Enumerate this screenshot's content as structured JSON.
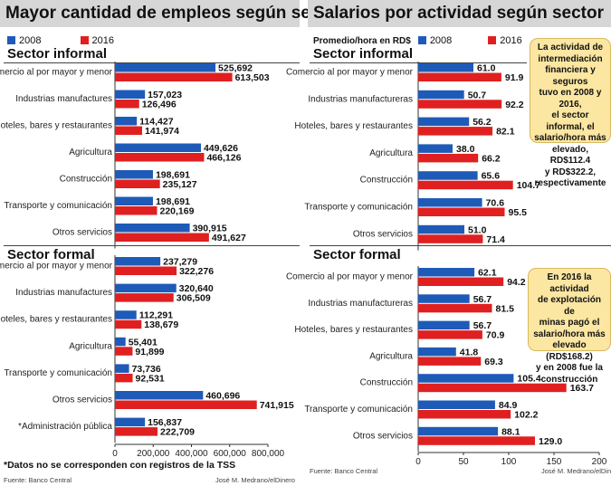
{
  "left": {
    "title": "Mayor cantidad de empleos según sector",
    "legend": [
      "2008",
      "2016"
    ],
    "informal_title": "Sector informal",
    "formal_title": "Sector formal",
    "note": "*Datos no se corresponden con registros de la TSS",
    "source": "Fuente: Banco Central",
    "credit": "José M. Medrano/elDinero",
    "ticks": [
      "0",
      "200,000",
      "400,000",
      "600,000",
      "800,000"
    ]
  },
  "right": {
    "title": "Salarios por actividad según sector",
    "legend_prefix": "Promedio/hora en RD$",
    "legend": [
      "2008",
      "2016"
    ],
    "informal_title": "Sector informal",
    "formal_title": "Sector formal",
    "source": "Fuente: Banco Central",
    "credit": "José M. Medrano/elDinero",
    "ticks": [
      "0",
      "50",
      "100",
      "150",
      "200"
    ],
    "callout_informal": [
      "La actividad de",
      "intermediación",
      "financiera y seguros",
      "tuvo en 2008 y 2016,",
      "el sector informal, el",
      "salario/hora más",
      "elevado, RD$112.4",
      "y RD$322.2,",
      "respectivamente"
    ],
    "callout_formal": [
      "En 2016 la actividad",
      "de explotación de",
      "minas pagó el",
      "salario/hora más",
      "elevado (RD$168.2)",
      "y en 2008 fue la",
      "construcción"
    ]
  },
  "colors": {
    "s2008": "#1e5bb8",
    "s2016": "#e02020"
  },
  "chart_data": [
    {
      "type": "bar",
      "title": "Mayor cantidad de empleos según sector — Sector informal",
      "categories": [
        "Comercio al por mayor y menor",
        "Industrias manufactures",
        "Hoteles, bares y restaurantes",
        "Agricultura",
        "Construcción",
        "Transporte y comunicación",
        "Otros servicios"
      ],
      "series": [
        {
          "name": "2008",
          "values": [
            525692,
            157023,
            114427,
            449626,
            198691,
            198691,
            390915
          ],
          "labels": [
            "525,692",
            "157,023",
            "114,427",
            "449,626",
            "198,691",
            "198,691",
            "390,915"
          ]
        },
        {
          "name": "2016",
          "values": [
            613503,
            126496,
            141974,
            466126,
            235127,
            220169,
            491627
          ],
          "labels": [
            "613,503",
            "126,496",
            "141,974",
            "466,126",
            "235,127",
            "220,169",
            "491,627"
          ]
        }
      ],
      "xlim": [
        0,
        800000
      ]
    },
    {
      "type": "bar",
      "title": "Mayor cantidad de empleos según sector — Sector formal",
      "categories": [
        "Comercio al por mayor y menor",
        "Industrias manufactures",
        "Hoteles, bares y restaurantes",
        "Agricultura",
        "Transporte y comunicación",
        "Otros servicios",
        "*Administración pública"
      ],
      "series": [
        {
          "name": "2008",
          "values": [
            237279,
            320640,
            112291,
            55401,
            73736,
            460696,
            156837
          ],
          "labels": [
            "237,279",
            "320,640",
            "112,291",
            "55,401",
            "73,736",
            "460,696",
            "156,837"
          ]
        },
        {
          "name": "2016",
          "values": [
            322276,
            306509,
            138679,
            91899,
            92531,
            741915,
            222709
          ],
          "labels": [
            "322,276",
            "306,509",
            "138,679",
            "91,899",
            "92,531",
            "741,915",
            "222,709"
          ]
        }
      ],
      "xlim": [
        0,
        800000
      ]
    },
    {
      "type": "bar",
      "title": "Salarios por actividad según sector — Sector informal",
      "categories": [
        "Comercio al por mayor y menor",
        "Industrias manufactureras",
        "Hoteles, bares y restaurantes",
        "Agricultura",
        "Construcción",
        "Transporte y comunicación",
        "Otros servicios"
      ],
      "series": [
        {
          "name": "2008",
          "values": [
            61.0,
            50.7,
            56.2,
            38.0,
            65.6,
            70.6,
            51.0
          ],
          "labels": [
            "61.0",
            "50.7",
            "56.2",
            "38.0",
            "65.6",
            "70.6",
            "51.0"
          ]
        },
        {
          "name": "2016",
          "values": [
            91.9,
            92.2,
            82.1,
            66.2,
            104.7,
            95.5,
            71.4
          ],
          "labels": [
            "91.9",
            "92.2",
            "82.1",
            "66.2",
            "104.7",
            "95.5",
            "71.4"
          ]
        }
      ],
      "xlim": [
        0,
        200
      ]
    },
    {
      "type": "bar",
      "title": "Salarios por actividad según sector — Sector formal",
      "categories": [
        "Comercio al por mayor y menor",
        "Industrias manufactureras",
        "Hoteles, bares y restaurantes",
        "Agricultura",
        "Construcción",
        "Transporte y comunicación",
        "Otros servicios"
      ],
      "series": [
        {
          "name": "2008",
          "values": [
            62.1,
            56.7,
            56.7,
            41.8,
            105.4,
            84.9,
            88.1
          ],
          "labels": [
            "62.1",
            "56.7",
            "56.7",
            "41.8",
            "105.4",
            "84.9",
            "88.1"
          ]
        },
        {
          "name": "2016",
          "values": [
            94.2,
            81.5,
            70.9,
            69.3,
            163.7,
            102.2,
            129.0
          ],
          "labels": [
            "94.2",
            "81.5",
            "70.9",
            "69.3",
            "163.7",
            "102.2",
            "129.0"
          ]
        }
      ],
      "xlim": [
        0,
        200
      ]
    }
  ]
}
